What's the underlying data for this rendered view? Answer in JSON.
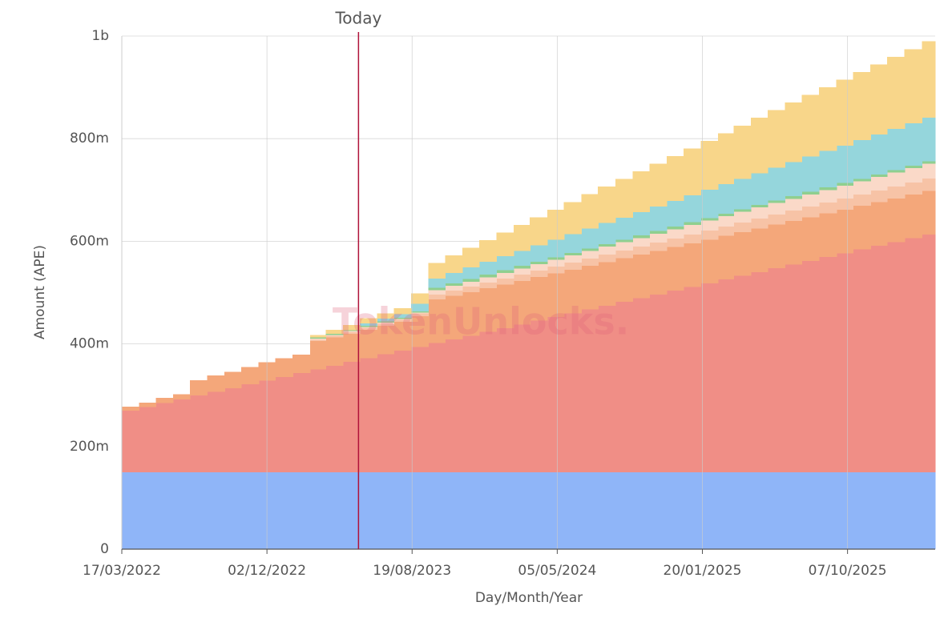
{
  "chart_data": {
    "type": "step-area-stacked",
    "x": [
      "2022-03-17",
      "2022-04-17",
      "2022-05-17",
      "2022-06-17",
      "2022-07-17",
      "2022-08-17",
      "2022-09-17",
      "2022-10-17",
      "2022-11-17",
      "2022-12-17",
      "2023-01-17",
      "2023-02-17",
      "2023-03-17",
      "2023-04-17",
      "2023-05-17",
      "2023-06-17",
      "2023-07-17",
      "2023-08-17",
      "2023-09-17",
      "2023-10-17",
      "2023-11-17",
      "2023-12-17",
      "2024-01-17",
      "2024-02-17",
      "2024-03-17",
      "2024-04-17",
      "2024-05-17",
      "2024-06-17",
      "2024-07-17",
      "2024-08-17",
      "2024-09-17",
      "2024-10-17",
      "2024-11-17",
      "2024-12-17",
      "2025-01-17",
      "2025-02-17",
      "2025-03-17",
      "2025-04-17",
      "2025-05-17",
      "2025-06-17",
      "2025-07-17",
      "2025-08-17",
      "2025-09-17",
      "2025-10-17",
      "2025-11-17",
      "2025-12-17",
      "2026-01-17",
      "2026-02-17"
    ],
    "series": [
      {
        "color": "#8fb5f8",
        "values": [
          150,
          150,
          150,
          150,
          150,
          150,
          150,
          150,
          150,
          150,
          150,
          150,
          150,
          150,
          150,
          150,
          150,
          150,
          150,
          150,
          150,
          150,
          150,
          150,
          150,
          150,
          150,
          150,
          150,
          150,
          150,
          150,
          150,
          150,
          150,
          150,
          150,
          150,
          150,
          150,
          150,
          150,
          150,
          150,
          150,
          150,
          150,
          150
        ]
      },
      {
        "color": "#f08e86",
        "values": [
          120,
          127.3,
          134.6,
          141.9,
          149.2,
          156.5,
          163.8,
          171.1,
          178.4,
          185.7,
          193,
          200.3,
          207.6,
          214.9,
          222.2,
          229.5,
          236.8,
          244.1,
          251.4,
          258.7,
          266,
          273.3,
          280.6,
          287.9,
          295.2,
          302.5,
          309.8,
          317.1,
          324.4,
          331.7,
          339,
          346.3,
          353.6,
          360.9,
          368.2,
          375.5,
          382.8,
          390.1,
          397.4,
          404.7,
          412,
          419.3,
          426.6,
          433.9,
          441.2,
          448.5,
          455.8,
          463.1
        ]
      },
      {
        "color": "#f4a77a",
        "values": [
          8,
          8,
          10,
          10,
          30,
          32,
          32,
          34,
          36,
          36,
          36,
          55,
          55,
          55,
          55,
          56,
          56,
          60,
          85,
          85,
          85,
          85,
          85,
          85,
          85,
          85,
          85,
          85,
          85,
          85,
          85,
          85,
          85,
          85,
          85,
          85,
          85,
          85,
          85,
          85,
          85,
          85,
          85,
          85,
          85,
          85,
          85,
          85
        ]
      },
      {
        "color": "#f7c3a6",
        "values": [
          0,
          0,
          0,
          0,
          0,
          0,
          0,
          0,
          0,
          0,
          0,
          3,
          3,
          3,
          4,
          4,
          4,
          5,
          10,
          10.5,
          11,
          11.5,
          12,
          12.5,
          13,
          13.5,
          14,
          14.5,
          15,
          15.5,
          16,
          16.5,
          17,
          17.5,
          18,
          18.5,
          19,
          19.5,
          20,
          20.5,
          21,
          21.5,
          22,
          22.5,
          23,
          23.5,
          24,
          24.5
        ]
      },
      {
        "color": "#fad9c8",
        "values": [
          0,
          0,
          0,
          0,
          0,
          0,
          0,
          0,
          0,
          0,
          0,
          2,
          2,
          2,
          2,
          2,
          2,
          2,
          8,
          8.7,
          9.4,
          10.1,
          10.8,
          11.5,
          12.2,
          12.9,
          13.6,
          14.3,
          15,
          15.7,
          16.4,
          17.1,
          17.8,
          18.5,
          19.2,
          19.9,
          20.6,
          21.3,
          22,
          22.7,
          23.4,
          24.1,
          24.8,
          25.5,
          26.2,
          26.9,
          27.6,
          28.3
        ]
      },
      {
        "color": "#8fcf8f",
        "values": [
          0,
          0,
          0,
          0,
          0,
          0,
          0,
          0,
          0,
          0,
          0,
          2,
          2,
          2,
          2,
          2,
          2,
          2,
          5,
          5,
          5,
          5,
          5,
          5,
          5,
          5,
          5,
          5,
          5,
          5,
          5,
          5,
          5,
          5,
          5,
          5,
          5,
          5,
          5,
          5,
          5,
          5,
          5,
          5,
          5,
          5,
          5,
          5
        ]
      },
      {
        "color": "#95d6dc",
        "values": [
          0,
          0,
          0,
          0,
          0,
          0,
          0,
          0,
          0,
          0,
          0,
          0,
          0,
          0,
          5,
          6,
          7,
          15,
          18,
          20.3,
          22.6,
          24.9,
          27.2,
          29.5,
          31.8,
          34.1,
          36.4,
          38.7,
          41,
          43.3,
          45.6,
          47.9,
          50.2,
          52.5,
          54.8,
          57.1,
          59.4,
          61.7,
          64,
          66.3,
          68.6,
          70.9,
          73.2,
          75.5,
          77.8,
          80.1,
          82.4,
          84.7
        ]
      },
      {
        "color": "#f8d68a",
        "values": [
          0,
          0,
          0,
          0,
          0,
          0,
          0,
          0,
          0,
          0,
          0,
          5,
          8,
          10,
          10,
          10,
          12,
          20,
          30,
          34.1,
          38.2,
          42.3,
          46.4,
          50.5,
          54.6,
          58.7,
          62.8,
          66.9,
          71,
          75.1,
          79.2,
          83.3,
          87.4,
          91.5,
          95.6,
          99.7,
          103.8,
          107.9,
          112,
          116.1,
          120.2,
          124.3,
          128.4,
          132.5,
          136.6,
          140.7,
          144.8,
          148.9
        ]
      }
    ],
    "xlim": [
      "2022-03-17",
      "2026-03-13"
    ],
    "xticks": [
      {
        "value": "2022-03-17",
        "label": "17/03/2022"
      },
      {
        "value": "2022-12-02",
        "label": "02/12/2022"
      },
      {
        "value": "2023-08-19",
        "label": "19/08/2023"
      },
      {
        "value": "2024-05-05",
        "label": "05/05/2024"
      },
      {
        "value": "2025-01-20",
        "label": "20/01/2025"
      },
      {
        "value": "2025-10-07",
        "label": "07/10/2025"
      }
    ],
    "ylim": [
      0,
      1000
    ],
    "yticks": [
      0,
      {
        "value": 200,
        "label": "200m"
      },
      {
        "value": 400,
        "label": "400m"
      },
      {
        "value": 600,
        "label": "600m"
      },
      {
        "value": 800,
        "label": "800m"
      },
      {
        "value": 1000,
        "label": "1b"
      }
    ],
    "grid": true,
    "xlabel": "Day/Month/Year",
    "ylabel": "Amount (APE)",
    "today": {
      "label": "Today",
      "x": "2023-05-15",
      "color": "#b0123a"
    },
    "watermark": "TokenUnlocks."
  }
}
